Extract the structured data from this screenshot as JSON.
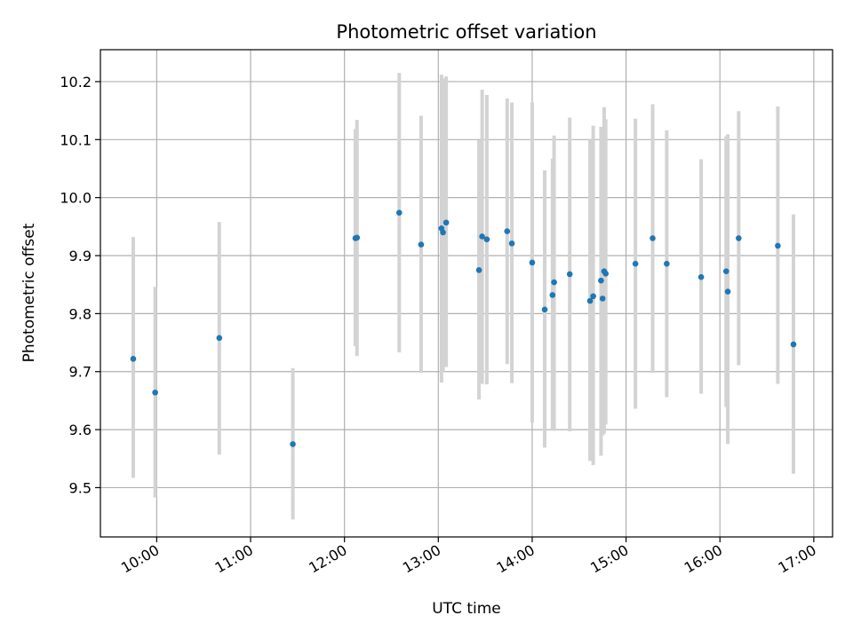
{
  "chart_data": {
    "type": "scatter",
    "title": "Photometric offset variation",
    "xlabel": "UTC time",
    "ylabel": "Photometric offset",
    "grid": true,
    "x_tick_values": [
      "10:00",
      "11:00",
      "12:00",
      "13:00",
      "14:00",
      "15:00",
      "16:00",
      "17:00"
    ],
    "x_tick_labels": [
      "10:00",
      "11:00",
      "12:00",
      "13:00",
      "14:00",
      "15:00",
      "16:00",
      "17:00"
    ],
    "y_tick_values": [
      9.5,
      9.6,
      9.7,
      9.8,
      9.9,
      10.0,
      10.1,
      10.2
    ],
    "y_tick_labels": [
      "9.5",
      "9.6",
      "9.7",
      "9.8",
      "9.9",
      "10.0",
      "10.1",
      "10.2"
    ],
    "xlim": [
      "09:24",
      "17:12"
    ],
    "ylim": [
      9.415,
      10.255
    ],
    "marker_color": "#1f77b4",
    "errorbar_color": "#d3d3d3",
    "series": [
      {
        "x": [
          "09:45",
          "09:59",
          "10:40",
          "11:27",
          "12:07",
          "12:08",
          "12:35",
          "12:49",
          "13:02",
          "13:03",
          "13:05",
          "13:26",
          "13:28",
          "13:31",
          "13:44",
          "13:47",
          "14:00",
          "14:08",
          "14:13",
          "14:14",
          "14:24",
          "14:37",
          "14:39",
          "14:44",
          "14:45",
          "14:46",
          "14:47",
          "15:06",
          "15:17",
          "15:26",
          "15:48",
          "16:04",
          "16:05",
          "16:12",
          "16:37",
          "16:47"
        ],
        "y": [
          9.722,
          9.664,
          9.758,
          9.575,
          9.93,
          9.931,
          9.974,
          9.919,
          9.947,
          9.94,
          9.957,
          9.875,
          9.933,
          9.928,
          9.942,
          9.921,
          9.888,
          9.807,
          9.832,
          9.854,
          9.868,
          9.822,
          9.83,
          9.857,
          9.826,
          9.873,
          9.869,
          9.886,
          9.93,
          9.886,
          9.863,
          9.873,
          9.838,
          9.93,
          9.917,
          9.747
        ],
        "ylow": [
          9.517,
          9.483,
          9.557,
          9.445,
          9.744,
          9.727,
          9.733,
          9.698,
          9.681,
          9.7,
          9.708,
          9.652,
          9.679,
          9.678,
          9.713,
          9.68,
          9.612,
          9.569,
          9.598,
          9.598,
          9.597,
          9.546,
          9.539,
          9.555,
          9.59,
          9.593,
          9.609,
          9.636,
          9.698,
          9.656,
          9.662,
          9.639,
          9.575,
          9.711,
          9.679,
          9.524
        ],
        "yhigh": [
          9.932,
          9.846,
          9.958,
          9.706,
          10.118,
          10.134,
          10.215,
          10.141,
          10.212,
          10.205,
          10.209,
          10.099,
          10.186,
          10.177,
          10.171,
          10.164,
          10.164,
          10.047,
          10.067,
          10.107,
          10.138,
          10.1,
          10.124,
          10.122,
          10.095,
          10.156,
          10.135,
          10.136,
          10.161,
          10.116,
          10.066,
          10.106,
          10.109,
          10.149,
          10.157,
          9.971
        ]
      }
    ]
  }
}
